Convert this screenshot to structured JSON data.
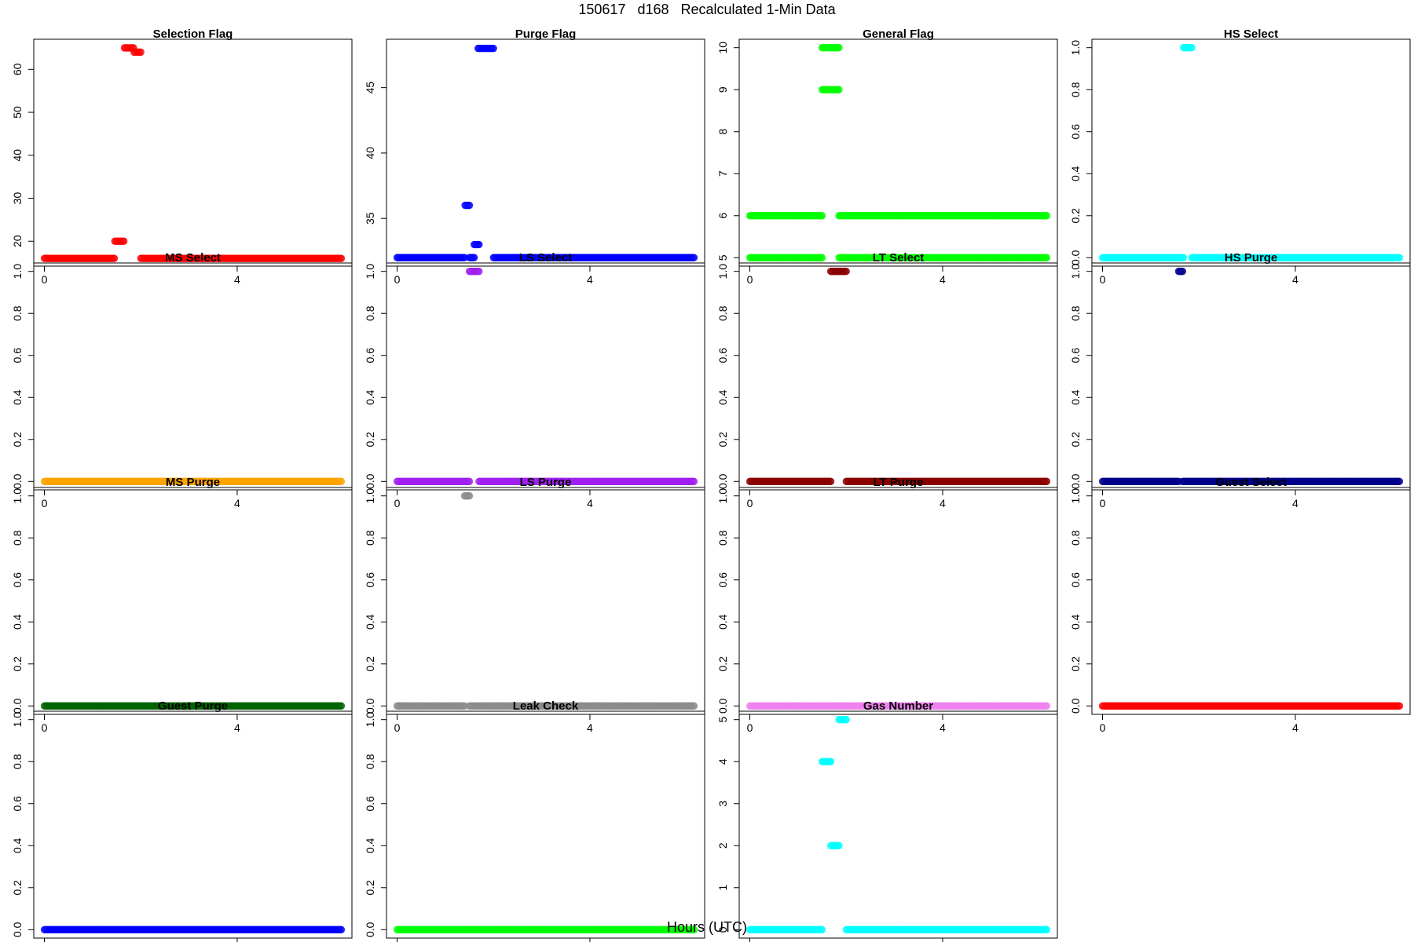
{
  "page": {
    "title": "150617   d168   Recalculated 1-Min Data",
    "xlabel": "Hours (UTC)"
  },
  "chart_data": [
    {
      "type": "scatter",
      "title": "Selection Flag",
      "color": "#ff0000",
      "x_ticks": [
        0,
        4
      ],
      "y_ticks": [
        20,
        30,
        40,
        50,
        60
      ],
      "xlim": [
        -0.22,
        6.38
      ],
      "ylim": [
        14.2,
        67
      ],
      "points": [
        {
          "x_range": [
            0.0,
            1.45
          ],
          "y": 16
        },
        {
          "x_range": [
            1.46,
            1.65
          ],
          "y": 20
        },
        {
          "x_range": [
            1.66,
            1.85
          ],
          "y": 65
        },
        {
          "x_range": [
            1.86,
            2.0
          ],
          "y": 64
        },
        {
          "x_range": [
            2.0,
            6.16
          ],
          "y": 16
        }
      ]
    },
    {
      "type": "scatter",
      "title": "Purge Flag",
      "color": "#0000ff",
      "x_ticks": [
        0,
        4
      ],
      "y_ticks": [
        35,
        40,
        45
      ],
      "xlim": [
        -0.22,
        6.38
      ],
      "ylim": [
        31.35,
        48.7
      ],
      "points": [
        {
          "x_range": [
            0.0,
            1.4
          ],
          "y": 32
        },
        {
          "x_range": [
            1.41,
            1.5
          ],
          "y": 36
        },
        {
          "x_range": [
            1.5,
            1.6
          ],
          "y": 32
        },
        {
          "x_range": [
            1.6,
            1.7
          ],
          "y": 33
        },
        {
          "x_range": [
            1.68,
            2.0
          ],
          "y": 48
        },
        {
          "x_range": [
            2.0,
            6.16
          ],
          "y": 32
        }
      ]
    },
    {
      "type": "scatter",
      "title": "General Flag",
      "color": "#00ff00",
      "x_ticks": [
        0,
        4
      ],
      "y_ticks": [
        5,
        6,
        7,
        8,
        9,
        10
      ],
      "xlim": [
        -0.22,
        6.38
      ],
      "ylim": [
        4.8,
        10.2
      ],
      "points": [
        {
          "x_range": [
            0.0,
            1.5
          ],
          "y": 5
        },
        {
          "x_range": [
            0.0,
            1.5
          ],
          "y": 6
        },
        {
          "x_range": [
            1.5,
            1.85
          ],
          "y": 9
        },
        {
          "x_range": [
            1.5,
            1.85
          ],
          "y": 10
        },
        {
          "x_range": [
            1.85,
            6.16
          ],
          "y": 5
        },
        {
          "x_range": [
            1.85,
            6.16
          ],
          "y": 6
        }
      ]
    },
    {
      "type": "scatter",
      "title": "HS Select",
      "color": "#00ffff",
      "x_ticks": [
        0,
        4
      ],
      "y_ticks": [
        0.0,
        0.2,
        0.4,
        0.6,
        0.8,
        1.0
      ],
      "xlim": [
        -0.22,
        6.38
      ],
      "ylim": [
        -0.04,
        1.04
      ],
      "points": [
        {
          "x_range": [
            0.0,
            1.68
          ],
          "y": 0
        },
        {
          "x_range": [
            1.68,
            1.85
          ],
          "y": 1
        },
        {
          "x_range": [
            1.85,
            6.16
          ],
          "y": 0
        }
      ]
    },
    {
      "type": "scatter",
      "title": "MS Select",
      "color": "#ffa500",
      "x_ticks": [
        0,
        4
      ],
      "y_ticks": [
        0.0,
        0.2,
        0.4,
        0.6,
        0.8,
        1.0
      ],
      "xlim": [
        -0.22,
        6.38
      ],
      "ylim": [
        -0.04,
        1.04
      ],
      "points": [
        {
          "x_range": [
            0.0,
            6.16
          ],
          "y": 0
        }
      ]
    },
    {
      "type": "scatter",
      "title": "LS Select",
      "color": "#a020f0",
      "x_ticks": [
        0,
        4
      ],
      "y_ticks": [
        0.0,
        0.2,
        0.4,
        0.6,
        0.8,
        1.0
      ],
      "xlim": [
        -0.22,
        6.38
      ],
      "ylim": [
        -0.04,
        1.04
      ],
      "points": [
        {
          "x_range": [
            0.0,
            1.5
          ],
          "y": 0
        },
        {
          "x_range": [
            1.5,
            1.7
          ],
          "y": 1
        },
        {
          "x_range": [
            1.7,
            6.16
          ],
          "y": 0
        }
      ]
    },
    {
      "type": "scatter",
      "title": "LT Select",
      "color": "#8b0000",
      "x_ticks": [
        0,
        4
      ],
      "y_ticks": [
        0.0,
        0.2,
        0.4,
        0.6,
        0.8,
        1.0
      ],
      "xlim": [
        -0.22,
        6.38
      ],
      "ylim": [
        -0.04,
        1.04
      ],
      "points": [
        {
          "x_range": [
            0.0,
            1.68
          ],
          "y": 0
        },
        {
          "x_range": [
            1.68,
            2.0
          ],
          "y": 1
        },
        {
          "x_range": [
            2.0,
            6.16
          ],
          "y": 0
        }
      ]
    },
    {
      "type": "scatter",
      "title": "HS Purge",
      "color": "#00008b",
      "x_ticks": [
        0,
        4
      ],
      "y_ticks": [
        0.0,
        0.2,
        0.4,
        0.6,
        0.8,
        1.0
      ],
      "xlim": [
        -0.22,
        6.38
      ],
      "ylim": [
        -0.04,
        1.04
      ],
      "points": [
        {
          "x_range": [
            0.0,
            1.58
          ],
          "y": 0
        },
        {
          "x_range": [
            1.58,
            1.66
          ],
          "y": 1
        },
        {
          "x_range": [
            1.66,
            6.16
          ],
          "y": 0
        }
      ]
    },
    {
      "type": "scatter",
      "title": "MS Purge",
      "color": "#006400",
      "x_ticks": [
        0,
        4
      ],
      "y_ticks": [
        0.0,
        0.2,
        0.4,
        0.6,
        0.8,
        1.0
      ],
      "xlim": [
        -0.22,
        6.38
      ],
      "ylim": [
        -0.04,
        1.04
      ],
      "points": [
        {
          "x_range": [
            0.0,
            6.16
          ],
          "y": 0
        }
      ]
    },
    {
      "type": "scatter",
      "title": "LS Purge",
      "color": "#8c8c8c",
      "x_ticks": [
        0,
        4
      ],
      "y_ticks": [
        0.0,
        0.2,
        0.4,
        0.6,
        0.8,
        1.0
      ],
      "xlim": [
        -0.22,
        6.38
      ],
      "ylim": [
        -0.04,
        1.04
      ],
      "points": [
        {
          "x_range": [
            0.0,
            1.4
          ],
          "y": 0
        },
        {
          "x_range": [
            1.4,
            1.5
          ],
          "y": 1
        },
        {
          "x_range": [
            1.5,
            6.16
          ],
          "y": 0
        }
      ]
    },
    {
      "type": "scatter",
      "title": "LT Purge",
      "color": "#ee82ee",
      "x_ticks": [
        0,
        4
      ],
      "y_ticks": [
        0.0,
        0.2,
        0.4,
        0.6,
        0.8,
        1.0
      ],
      "xlim": [
        -0.22,
        6.38
      ],
      "ylim": [
        -0.04,
        1.04
      ],
      "points": [
        {
          "x_range": [
            0.0,
            6.16
          ],
          "y": 0
        }
      ]
    },
    {
      "type": "scatter",
      "title": "Guest Select",
      "color": "#ff0000",
      "x_ticks": [
        0,
        4
      ],
      "y_ticks": [
        0.0,
        0.2,
        0.4,
        0.6,
        0.8,
        1.0
      ],
      "xlim": [
        -0.22,
        6.38
      ],
      "ylim": [
        -0.04,
        1.04
      ],
      "points": [
        {
          "x_range": [
            0.0,
            6.16
          ],
          "y": 0
        }
      ]
    },
    {
      "type": "scatter",
      "title": "Guest Purge",
      "color": "#0000ff",
      "x_ticks": [
        0,
        4
      ],
      "y_ticks": [
        0.0,
        0.2,
        0.4,
        0.6,
        0.8,
        1.0
      ],
      "xlim": [
        -0.22,
        6.38
      ],
      "ylim": [
        -0.04,
        1.04
      ],
      "points": [
        {
          "x_range": [
            0.0,
            6.16
          ],
          "y": 0
        }
      ]
    },
    {
      "type": "scatter",
      "title": "Leak Check",
      "color": "#00ff00",
      "x_ticks": [
        0,
        4
      ],
      "y_ticks": [
        0.0,
        0.2,
        0.4,
        0.6,
        0.8,
        1.0
      ],
      "xlim": [
        -0.22,
        6.38
      ],
      "ylim": [
        -0.04,
        1.04
      ],
      "points": [
        {
          "x_range": [
            0.0,
            6.16
          ],
          "y": 0
        }
      ]
    },
    {
      "type": "scatter",
      "title": "Gas Number",
      "color": "#00ffff",
      "x_ticks": [
        0,
        4
      ],
      "y_ticks": [
        0,
        1,
        2,
        3,
        4,
        5
      ],
      "xlim": [
        -0.22,
        6.38
      ],
      "ylim": [
        -0.2,
        5.2
      ],
      "points": [
        {
          "x_range": [
            0.0,
            1.5
          ],
          "y": 0
        },
        {
          "x_range": [
            1.5,
            1.68
          ],
          "y": 4
        },
        {
          "x_range": [
            1.68,
            1.85
          ],
          "y": 2
        },
        {
          "x_range": [
            1.85,
            2.0
          ],
          "y": 5
        },
        {
          "x_range": [
            2.0,
            6.16
          ],
          "y": 0
        }
      ]
    }
  ]
}
